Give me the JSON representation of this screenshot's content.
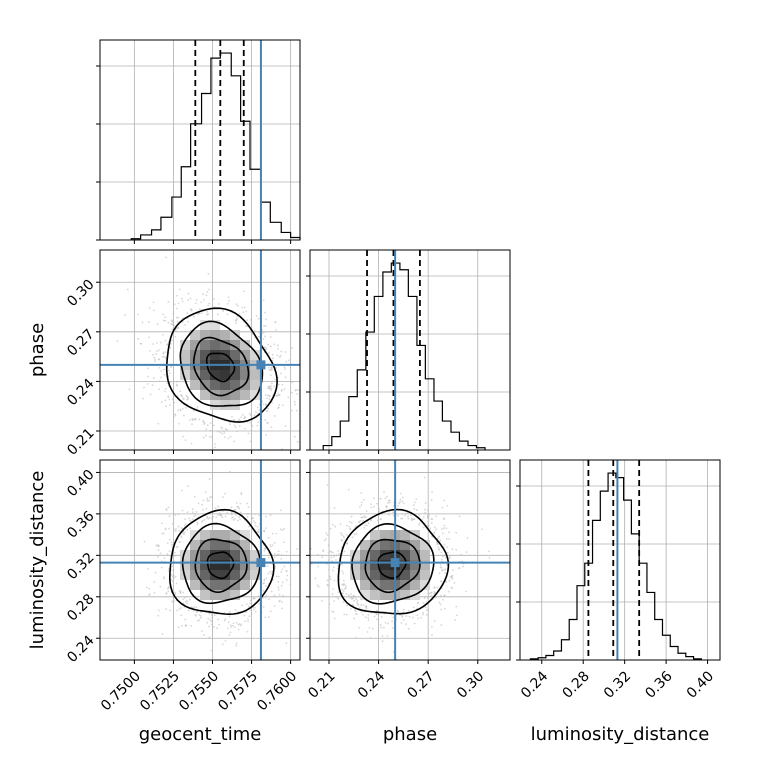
{
  "chart_data": {
    "type": "corner",
    "parameters": [
      "geocent_time",
      "phase",
      "luminosity_distance"
    ],
    "truth_color": "#4682b4",
    "truths": {
      "geocent_time": 0.7581,
      "phase": 0.25,
      "luminosity_distance": 0.313
    },
    "quantiles": {
      "geocent_time": [
        0.7539,
        0.7555,
        0.757
      ],
      "phase": [
        0.233,
        0.249,
        0.265
      ],
      "luminosity_distance": [
        0.285,
        0.309,
        0.334
      ]
    },
    "axes": {
      "geocent_time": {
        "range": [
          0.7478,
          0.7606
        ],
        "ticks": [
          0.75,
          0.7525,
          0.755,
          0.7575,
          0.76
        ],
        "tick_labels": [
          "0.7500",
          "0.7525",
          "0.7550",
          "0.7575",
          "0.7600"
        ]
      },
      "phase": {
        "range": [
          0.1985,
          0.3195
        ],
        "ticks": [
          0.21,
          0.24,
          0.27,
          0.3
        ],
        "tick_labels": [
          "0.21",
          "0.24",
          "0.27",
          "0.30"
        ]
      },
      "luminosity_distance": {
        "range": [
          0.219,
          0.412
        ],
        "ticks": [
          0.24,
          0.28,
          0.32,
          0.36,
          0.4
        ],
        "tick_labels": [
          "0.24",
          "0.28",
          "0.32",
          "0.36",
          "0.40"
        ]
      }
    },
    "histograms": {
      "geocent_time": {
        "bin_edges": [
          0.7498,
          0.7504,
          0.7511,
          0.7517,
          0.7524,
          0.753,
          0.7536,
          0.7543,
          0.7549,
          0.7555,
          0.7562,
          0.7568,
          0.7574,
          0.7581,
          0.7587,
          0.7594,
          0.76,
          0.7606
        ],
        "counts": [
          0.5,
          2,
          4,
          9,
          17,
          29,
          46,
          58,
          72,
          74,
          65,
          47,
          28,
          15,
          7,
          3,
          1
        ]
      },
      "phase": {
        "bin_edges": [
          0.2065,
          0.2117,
          0.2168,
          0.222,
          0.2271,
          0.2323,
          0.2374,
          0.2426,
          0.2477,
          0.2529,
          0.258,
          0.2632,
          0.2683,
          0.2735,
          0.2786,
          0.2838,
          0.2889,
          0.2941,
          0.2992,
          0.3044
        ],
        "counts": [
          2,
          6,
          13,
          24,
          36,
          53,
          69,
          80,
          84,
          81,
          69,
          47,
          32,
          22,
          13,
          8,
          4,
          2,
          1
        ]
      },
      "luminosity_distance": {
        "bin_edges": [
          0.229,
          0.2365,
          0.244,
          0.2515,
          0.259,
          0.2665,
          0.274,
          0.2815,
          0.289,
          0.2965,
          0.304,
          0.3115,
          0.319,
          0.3265,
          0.334,
          0.3415,
          0.349,
          0.3565,
          0.364,
          0.3715,
          0.379,
          0.3865,
          0.394
        ],
        "counts": [
          0.5,
          1,
          2,
          4,
          9,
          18,
          33,
          43,
          62,
          75,
          83,
          81,
          71,
          56,
          43,
          30,
          18,
          11,
          6,
          3,
          1.5,
          0.5
        ]
      }
    },
    "posterior_2d": {
      "phase_vs_geocent_time": {
        "center": [
          0.7555,
          0.249
        ],
        "sigma": [
          0.00175,
          0.017
        ],
        "correlation": -0.2
      },
      "luminosity_distance_vs_geocent_time": {
        "center": [
          0.7555,
          0.311
        ],
        "sigma": [
          0.00165,
          0.025
        ],
        "correlation": 0.0
      },
      "luminosity_distance_vs_phase": {
        "center": [
          0.248,
          0.311
        ],
        "sigma": [
          0.0165,
          0.025
        ],
        "correlation": 0.05
      }
    },
    "contour_levels_sigma": [
      0.5,
      1.0,
      1.5,
      2.0
    ],
    "grid": true,
    "xlabel_geocent_time": "geocent_time",
    "xlabel_phase": "phase",
    "xlabel_luminosity_distance": "luminosity_distance",
    "ylabel_phase": "phase",
    "ylabel_luminosity_distance": "luminosity_distance"
  }
}
